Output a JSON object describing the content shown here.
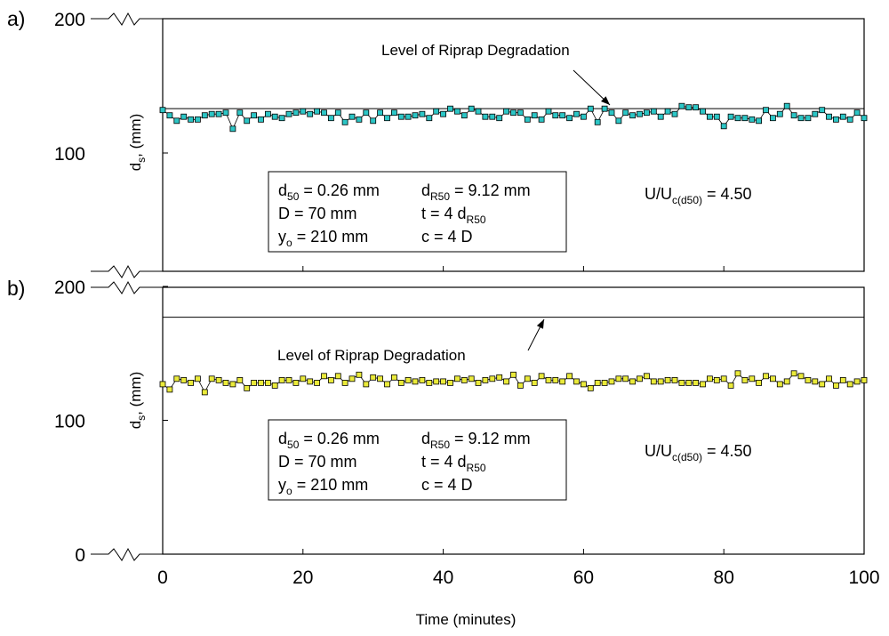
{
  "chart_data": [
    {
      "type": "line",
      "panel_label": "a)",
      "ylabel_main": "d",
      "ylabel_sub": "s",
      "ylabel_rest": ", (mm)",
      "yticks": [
        "200",
        "100"
      ],
      "ylim": [
        0,
        200
      ],
      "xlim": [
        0,
        100
      ],
      "grid": false,
      "reference_line": {
        "label": "Level of Riprap Degradation",
        "y": 133
      },
      "ratio": {
        "main": "U/U",
        "sub": "c(d50)",
        "rest": " = 4.50"
      },
      "info": [
        [
          {
            "t": "d"
          },
          {
            "t": "50",
            "sub": true
          },
          {
            "t": " = 0.26 mm"
          }
        ],
        [
          {
            "t": "D = 70 mm"
          }
        ],
        [
          {
            "t": "y"
          },
          {
            "t": "o",
            "sub": true
          },
          {
            "t": " = 210 mm"
          }
        ],
        [
          {
            "t": "d"
          },
          {
            "t": "R50",
            "sub": true
          },
          {
            "t": " = 9.12 mm"
          }
        ],
        [
          {
            "t": "t = 4 d"
          },
          {
            "t": "R50",
            "sub": true
          }
        ],
        [
          {
            "t": "c = 4 D"
          }
        ]
      ],
      "series": [
        {
          "color": "#2cc6c6",
          "x": [
            0,
            1,
            2,
            3,
            4,
            5,
            6,
            7,
            8,
            9,
            10,
            11,
            12,
            13,
            14,
            15,
            16,
            17,
            18,
            19,
            20,
            21,
            22,
            23,
            24,
            25,
            26,
            27,
            28,
            29,
            30,
            31,
            32,
            33,
            34,
            35,
            36,
            37,
            38,
            39,
            40,
            41,
            42,
            43,
            44,
            45,
            46,
            47,
            48,
            49,
            50,
            51,
            52,
            53,
            54,
            55,
            56,
            57,
            58,
            59,
            60,
            61,
            62,
            63,
            64,
            65,
            66,
            67,
            68,
            69,
            70,
            71,
            72,
            73,
            74,
            75,
            76,
            77,
            78,
            79,
            80,
            81,
            82,
            83,
            84,
            85,
            86,
            87,
            88,
            89,
            90,
            91,
            92,
            93,
            94,
            95,
            96,
            97,
            98,
            99,
            100
          ],
          "y": [
            132,
            128,
            124,
            127,
            125,
            125,
            128,
            129,
            129,
            130,
            118,
            130,
            124,
            128,
            125,
            129,
            127,
            126,
            129,
            130,
            131,
            129,
            131,
            130,
            126,
            130,
            123,
            127,
            125,
            130,
            124,
            130,
            126,
            130,
            127,
            127,
            128,
            129,
            126,
            131,
            129,
            133,
            131,
            128,
            133,
            131,
            127,
            127,
            126,
            131,
            130,
            130,
            125,
            128,
            125,
            131,
            128,
            128,
            126,
            129,
            127,
            133,
            123,
            133,
            130,
            124,
            130,
            128,
            129,
            130,
            131,
            127,
            131,
            129,
            135,
            134,
            134,
            131,
            127,
            127,
            120,
            127,
            126,
            126,
            125,
            124,
            132,
            126,
            129,
            135,
            128,
            126,
            126,
            129,
            132,
            127,
            125,
            127,
            125,
            130,
            126
          ]
        }
      ]
    },
    {
      "type": "line",
      "panel_label": "b)",
      "ylabel_main": "d",
      "ylabel_sub": "s",
      "ylabel_rest": ", (mm)",
      "yticks": [
        "200",
        "100",
        "0"
      ],
      "ylim": [
        0,
        200
      ],
      "xlim": [
        0,
        100
      ],
      "xticks": [
        "0",
        "20",
        "40",
        "60",
        "80",
        "100"
      ],
      "xlabel": "Time  (minutes)",
      "grid": false,
      "reference_line": {
        "label": "Level of Riprap Degradation",
        "y": 177
      },
      "ratio": {
        "main": "U/U",
        "sub": "c(d50)",
        "rest": " = 4.50"
      },
      "info": [
        [
          {
            "t": "d"
          },
          {
            "t": "50",
            "sub": true
          },
          {
            "t": " = 0.26 mm"
          }
        ],
        [
          {
            "t": "D = 70 mm"
          }
        ],
        [
          {
            "t": "y"
          },
          {
            "t": "o",
            "sub": true
          },
          {
            "t": " = 210 mm"
          }
        ],
        [
          {
            "t": "d"
          },
          {
            "t": "R50",
            "sub": true
          },
          {
            "t": " = 9.12 mm"
          }
        ],
        [
          {
            "t": "t = 4 d"
          },
          {
            "t": "R50",
            "sub": true
          }
        ],
        [
          {
            "t": "c = 4 D"
          }
        ]
      ],
      "series": [
        {
          "color": "#eaea3a",
          "x": [
            0,
            1,
            2,
            3,
            4,
            5,
            6,
            7,
            8,
            9,
            10,
            11,
            12,
            13,
            14,
            15,
            16,
            17,
            18,
            19,
            20,
            21,
            22,
            23,
            24,
            25,
            26,
            27,
            28,
            29,
            30,
            31,
            32,
            33,
            34,
            35,
            36,
            37,
            38,
            39,
            40,
            41,
            42,
            43,
            44,
            45,
            46,
            47,
            48,
            49,
            50,
            51,
            52,
            53,
            54,
            55,
            56,
            57,
            58,
            59,
            60,
            61,
            62,
            63,
            64,
            65,
            66,
            67,
            68,
            69,
            70,
            71,
            72,
            73,
            74,
            75,
            76,
            77,
            78,
            79,
            80,
            81,
            82,
            83,
            84,
            85,
            86,
            87,
            88,
            89,
            90,
            91,
            92,
            93,
            94,
            95,
            96,
            97,
            98,
            99,
            100
          ],
          "y": [
            127,
            123,
            131,
            130,
            128,
            131,
            121,
            131,
            130,
            128,
            127,
            130,
            124,
            128,
            128,
            128,
            126,
            130,
            130,
            128,
            131,
            129,
            128,
            133,
            130,
            133,
            128,
            131,
            134,
            127,
            132,
            131,
            127,
            132,
            128,
            130,
            129,
            130,
            128,
            129,
            129,
            128,
            131,
            130,
            131,
            128,
            130,
            131,
            132,
            129,
            134,
            126,
            131,
            128,
            133,
            130,
            130,
            129,
            133,
            129,
            127,
            124,
            128,
            128,
            129,
            131,
            131,
            129,
            131,
            133,
            129,
            129,
            130,
            130,
            128,
            128,
            128,
            127,
            131,
            130,
            131,
            126,
            135,
            130,
            131,
            128,
            133,
            131,
            127,
            129,
            135,
            133,
            130,
            129,
            127,
            131,
            126,
            130,
            127,
            129,
            130
          ]
        }
      ]
    }
  ]
}
